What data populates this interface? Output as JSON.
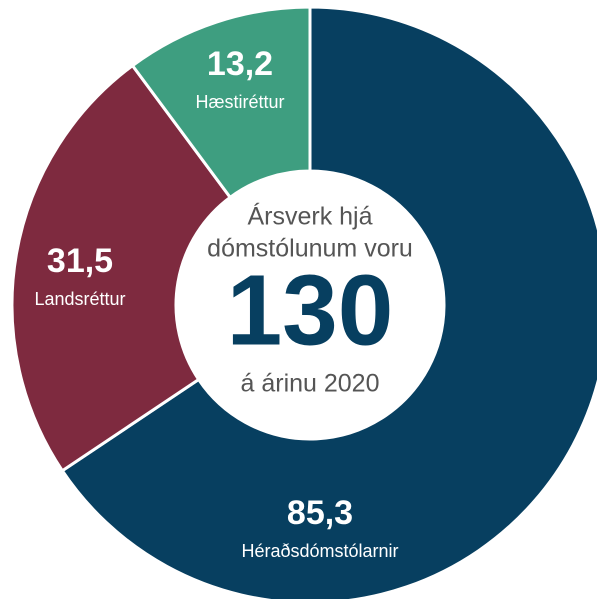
{
  "chart_data": {
    "type": "donut",
    "categories": [
      "Héraðsdómstólarnir",
      "Landsréttur",
      "Hæstiréttur"
    ],
    "values": [
      85.3,
      31.5,
      13.2
    ],
    "value_labels": [
      "85,3",
      "31,5",
      "13,2"
    ],
    "colors": [
      "#073f60",
      "#7e2a3f",
      "#3e9e80"
    ],
    "center_lines": [
      "Ársverk hjá",
      "dómstólunum voru"
    ],
    "center_value": 130,
    "center_note": "á árinu 2020"
  }
}
